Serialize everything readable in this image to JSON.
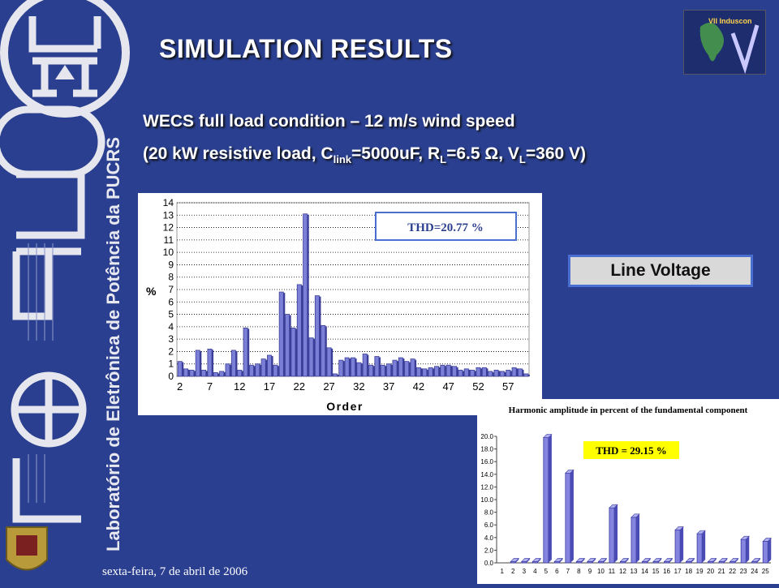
{
  "slide": {
    "title": "SIMULATION RESULTS",
    "subtitle_line1": "WECS full load condition – 12 m/s wind speed",
    "subtitle_line2": {
      "prefix": "(20 kW resistive load, C",
      "sub1": "link",
      "mid1": "=5000uF, R",
      "sub2": "L",
      "mid2": "=6.5 Ω, V",
      "sub3": "L",
      "suffix": "=360 V)"
    },
    "line_voltage_label": "Line Voltage",
    "date": "sexta-feira, 7 de abril de 2006",
    "sidebar_text": "Laboratório de Eletrônica de Potência da PUCRS",
    "logo_letters": "LEPUC",
    "badge_caption": "VII Induscon"
  },
  "colors": {
    "background": "#2a3f8f",
    "bar_fill": "#7b7fd6",
    "bar_dark": "#3b3f99",
    "thd_box_border": "#4a6fd0",
    "thd_box_text": "#2a3f8f",
    "thd2_box": "#ffff00"
  },
  "chart_data": [
    {
      "type": "bar",
      "xlabel": "Order",
      "ylabel": "%",
      "ylim": [
        0,
        14
      ],
      "yticks": [
        0,
        1,
        2,
        3,
        4,
        5,
        6,
        7,
        8,
        9,
        10,
        11,
        12,
        13,
        14
      ],
      "xtick_labels": [
        "2",
        "7",
        "12",
        "17",
        "22",
        "27",
        "32",
        "37",
        "42",
        "47",
        "52",
        "57"
      ],
      "annotation": "THD=20.77 %",
      "x": [
        2,
        3,
        4,
        5,
        6,
        7,
        8,
        9,
        10,
        11,
        12,
        13,
        14,
        15,
        16,
        17,
        18,
        19,
        20,
        21,
        22,
        23,
        24,
        25,
        26,
        27,
        28,
        29,
        30,
        31,
        32,
        33,
        34,
        35,
        36,
        37,
        38,
        39,
        40,
        41,
        42,
        43,
        44,
        45,
        46,
        47,
        48,
        49,
        50,
        51,
        52,
        53,
        54,
        55,
        56,
        57,
        58,
        59,
        60
      ],
      "values": [
        1.2,
        0.6,
        0.5,
        2.1,
        0.5,
        2.2,
        0.3,
        0.4,
        1.0,
        2.1,
        0.5,
        3.9,
        0.9,
        1.0,
        1.4,
        1.7,
        0.9,
        6.8,
        5.0,
        3.9,
        7.4,
        13.1,
        3.1,
        6.5,
        4.1,
        2.3,
        0.2,
        1.3,
        1.5,
        1.5,
        1.1,
        1.8,
        0.9,
        1.6,
        0.9,
        1.0,
        1.3,
        1.5,
        1.2,
        1.4,
        0.7,
        0.6,
        0.7,
        0.8,
        0.9,
        0.9,
        0.8,
        0.5,
        0.6,
        0.5,
        0.7,
        0.7,
        0.4,
        0.5,
        0.4,
        0.5,
        0.7,
        0.6,
        0.2
      ]
    },
    {
      "type": "bar",
      "title": "Harmonic amplitude in percent of the fundamental component",
      "ylim": [
        0,
        20
      ],
      "yticks": [
        "0.0",
        "2.0",
        "4.0",
        "6.0",
        "8.0",
        "10.0",
        "12.0",
        "14.0",
        "16.0",
        "18.0",
        "20.0"
      ],
      "categories": [
        "1",
        "2",
        "3",
        "4",
        "5",
        "6",
        "7",
        "8",
        "9",
        "10",
        "11",
        "12",
        "13",
        "14",
        "15",
        "16",
        "17",
        "18",
        "19",
        "20",
        "21",
        "22",
        "23",
        "24",
        "25"
      ],
      "values": [
        0,
        0.2,
        0.2,
        0.2,
        19.8,
        0.2,
        14.2,
        0.2,
        0.2,
        0.2,
        8.7,
        0.2,
        7.2,
        0.2,
        0.2,
        0.2,
        5.2,
        0.2,
        4.6,
        0.2,
        0.2,
        0.2,
        3.7,
        0.2,
        3.4
      ],
      "annotation": "THD = 29.15 %"
    }
  ]
}
